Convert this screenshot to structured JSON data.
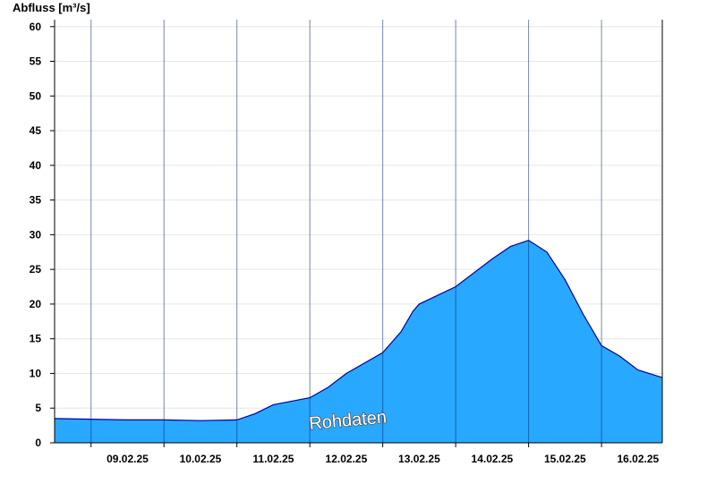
{
  "chart_data": {
    "type": "area",
    "ylabel": "Abfluss [m³/s]",
    "ylim": [
      0,
      61
    ],
    "yticks": [
      0,
      5,
      10,
      15,
      20,
      25,
      30,
      35,
      40,
      45,
      50,
      55,
      60
    ],
    "xlim": [
      "2025-02-08T12:00",
      "2025-02-16T20:00"
    ],
    "day_ticks": [
      "09.02.25",
      "10.02.25",
      "11.02.25",
      "12.02.25",
      "13.02.25",
      "14.02.25",
      "15.02.25",
      "16.02.25"
    ],
    "grid": true,
    "legend": "none",
    "fill_color": "#29a8ff",
    "line_color": "#0000a0",
    "watermark": "Rohdaten",
    "series": [
      {
        "values": [
          {
            "t": "2025-02-08T12:00",
            "y": 3.5
          },
          {
            "t": "2025-02-09T00:00",
            "y": 3.4
          },
          {
            "t": "2025-02-09T12:00",
            "y": 3.3
          },
          {
            "t": "2025-02-10T00:00",
            "y": 3.3
          },
          {
            "t": "2025-02-10T12:00",
            "y": 3.2
          },
          {
            "t": "2025-02-11T00:00",
            "y": 3.3
          },
          {
            "t": "2025-02-11T06:00",
            "y": 4.2
          },
          {
            "t": "2025-02-11T12:00",
            "y": 5.5
          },
          {
            "t": "2025-02-12T00:00",
            "y": 6.5
          },
          {
            "t": "2025-02-12T06:00",
            "y": 8.0
          },
          {
            "t": "2025-02-12T12:00",
            "y": 10.0
          },
          {
            "t": "2025-02-13T00:00",
            "y": 13.0
          },
          {
            "t": "2025-02-13T06:00",
            "y": 16.0
          },
          {
            "t": "2025-02-13T10:00",
            "y": 19.0
          },
          {
            "t": "2025-02-13T12:00",
            "y": 20.0
          },
          {
            "t": "2025-02-14T00:00",
            "y": 22.5
          },
          {
            "t": "2025-02-14T12:00",
            "y": 26.5
          },
          {
            "t": "2025-02-14T18:00",
            "y": 28.3
          },
          {
            "t": "2025-02-15T00:00",
            "y": 29.2
          },
          {
            "t": "2025-02-15T06:00",
            "y": 27.5
          },
          {
            "t": "2025-02-15T12:00",
            "y": 23.5
          },
          {
            "t": "2025-02-15T18:00",
            "y": 18.5
          },
          {
            "t": "2025-02-16T00:00",
            "y": 14.0
          },
          {
            "t": "2025-02-16T06:00",
            "y": 12.5
          },
          {
            "t": "2025-02-16T12:00",
            "y": 10.5
          },
          {
            "t": "2025-02-16T20:00",
            "y": 9.4
          }
        ]
      }
    ]
  }
}
